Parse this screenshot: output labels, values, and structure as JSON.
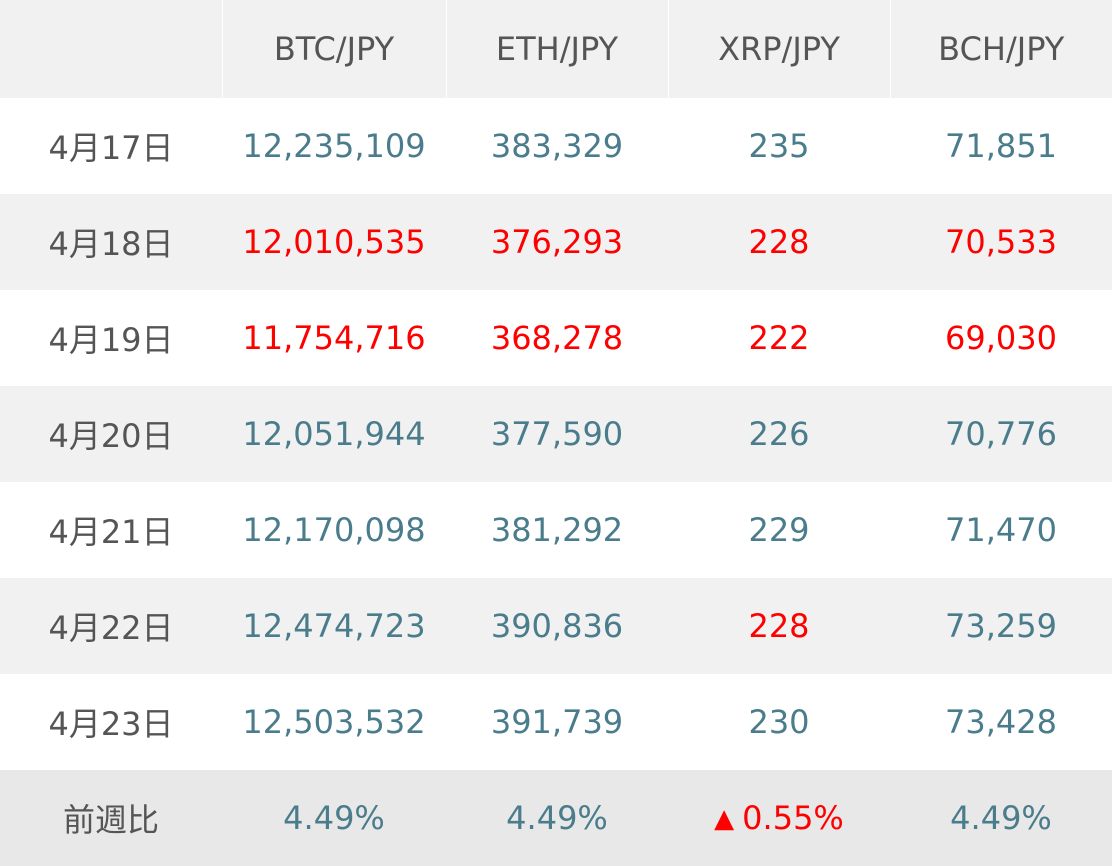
{
  "header": {
    "corner": "",
    "columns": [
      "BTC/JPY",
      "ETH/JPY",
      "XRP/JPY",
      "BCH/JPY"
    ]
  },
  "rows": [
    {
      "date": "4月17日",
      "values": [
        "12,235,109",
        "383,329",
        "235",
        "71,851"
      ],
      "trend": [
        "pos",
        "pos",
        "pos",
        "pos"
      ]
    },
    {
      "date": "4月18日",
      "values": [
        "12,010,535",
        "376,293",
        "228",
        "70,533"
      ],
      "trend": [
        "neg",
        "neg",
        "neg",
        "neg"
      ]
    },
    {
      "date": "4月19日",
      "values": [
        "11,754,716",
        "368,278",
        "222",
        "69,030"
      ],
      "trend": [
        "neg",
        "neg",
        "neg",
        "neg"
      ]
    },
    {
      "date": "4月20日",
      "values": [
        "12,051,944",
        "377,590",
        "226",
        "70,776"
      ],
      "trend": [
        "pos",
        "pos",
        "pos",
        "pos"
      ]
    },
    {
      "date": "4月21日",
      "values": [
        "12,170,098",
        "381,292",
        "229",
        "71,470"
      ],
      "trend": [
        "pos",
        "pos",
        "pos",
        "pos"
      ]
    },
    {
      "date": "4月22日",
      "values": [
        "12,474,723",
        "390,836",
        "228",
        "73,259"
      ],
      "trend": [
        "pos",
        "pos",
        "neg",
        "pos"
      ]
    },
    {
      "date": "4月23日",
      "values": [
        "12,503,532",
        "391,739",
        "230",
        "73,428"
      ],
      "trend": [
        "pos",
        "pos",
        "pos",
        "pos"
      ]
    }
  ],
  "footer": {
    "label": "前週比",
    "values": [
      {
        "marker": "",
        "text": "4.49%",
        "trend": "pos"
      },
      {
        "marker": "",
        "text": "4.49%",
        "trend": "pos"
      },
      {
        "marker": "▲",
        "text": "0.55%",
        "trend": "neg"
      },
      {
        "marker": "",
        "text": "4.49%",
        "trend": "pos"
      }
    ]
  },
  "colors": {
    "positive": "#4a7c8c",
    "negative": "#ff0000",
    "label": "#555555",
    "shade": "#f1f1f1",
    "footer_shade": "#e8e8e8"
  }
}
